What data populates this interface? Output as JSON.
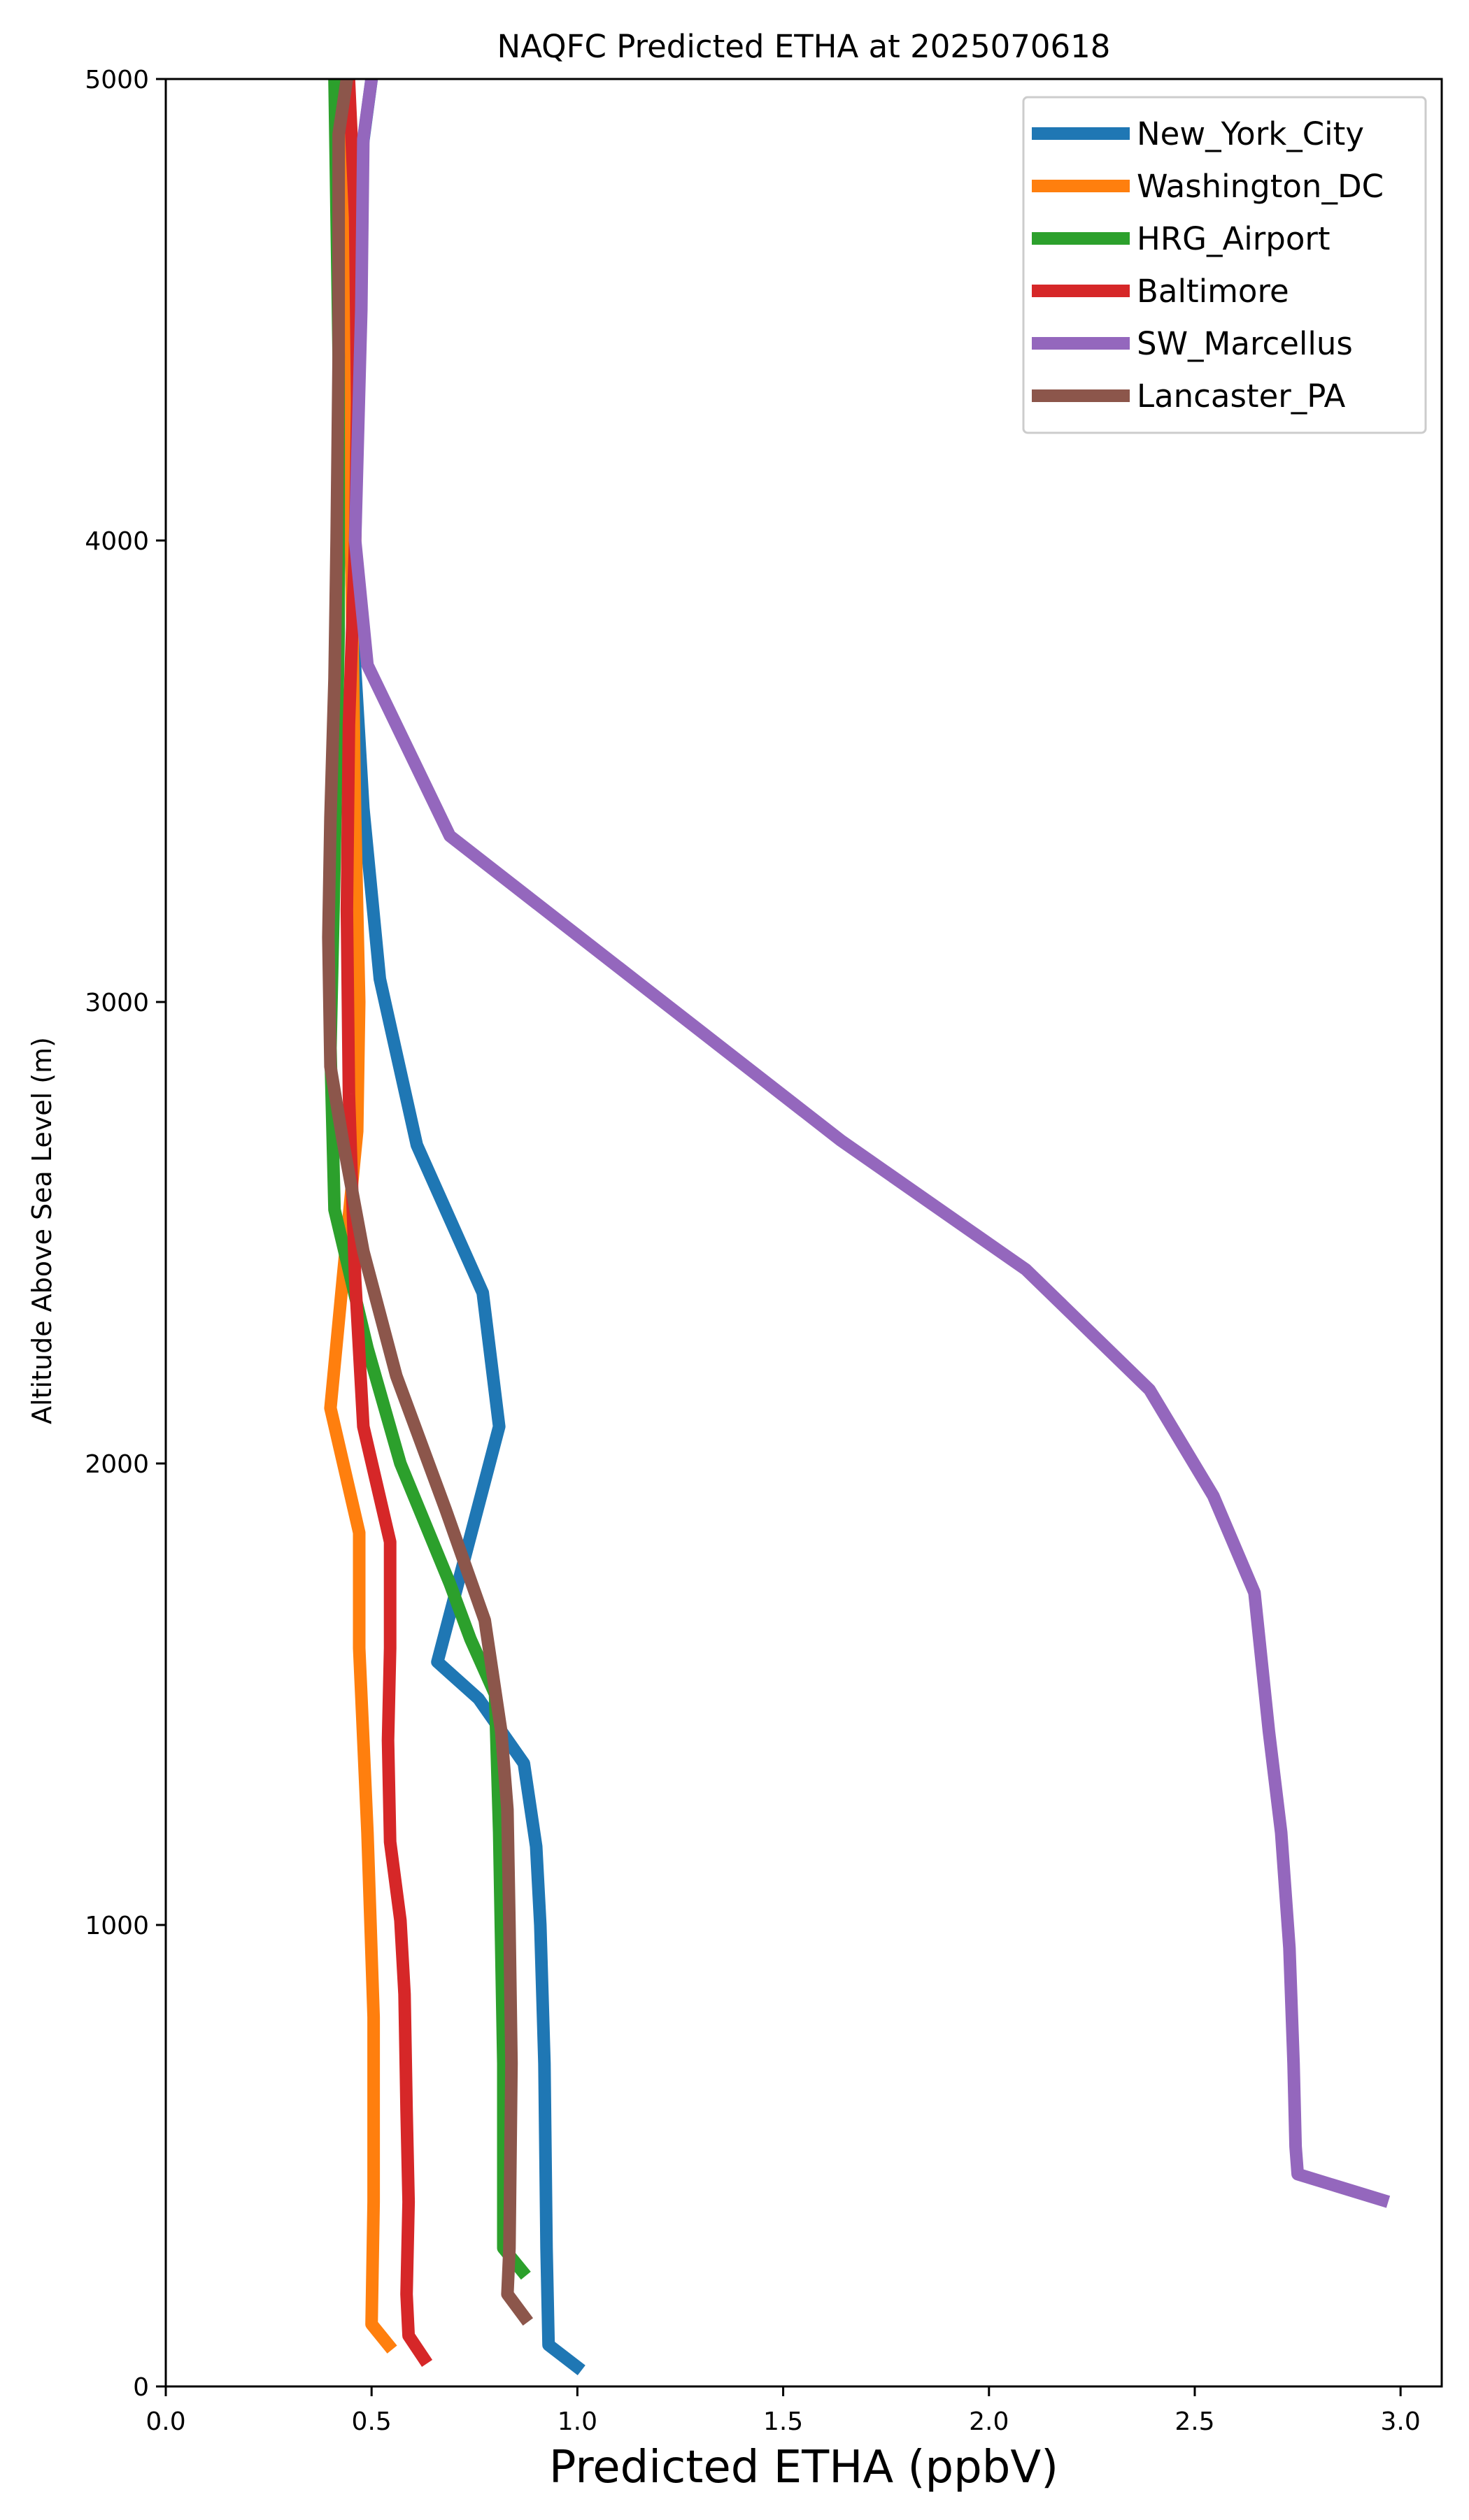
{
  "chart_data": {
    "type": "line",
    "title": "NAQFC Predicted ETHA at 2025070618",
    "xlabel": "Predicted ETHA (ppbV)",
    "ylabel": "Altitude Above Sea Level (m)",
    "xlim": [
      0.0,
      3.1
    ],
    "ylim": [
      0,
      5000
    ],
    "xticks": [
      0.0,
      0.5,
      1.0,
      1.5,
      2.0,
      2.5,
      3.0
    ],
    "xtick_labels": [
      "0.0",
      "0.5",
      "1.0",
      "1.5",
      "2.0",
      "2.5",
      "3.0"
    ],
    "yticks": [
      0,
      1000,
      2000,
      3000,
      4000,
      5000
    ],
    "ytick_labels": [
      "0",
      "1000",
      "2000",
      "3000",
      "4000",
      "5000"
    ],
    "grid": false,
    "legend_position": "top-right",
    "series": [
      {
        "name": "New_York_City",
        "color": "#1f77b4",
        "points": [
          [
            1.01,
            35
          ],
          [
            0.93,
            90
          ],
          [
            0.925,
            300
          ],
          [
            0.92,
            700
          ],
          [
            0.91,
            1000
          ],
          [
            0.9,
            1170
          ],
          [
            0.87,
            1350
          ],
          [
            0.76,
            1490
          ],
          [
            0.66,
            1570
          ],
          [
            0.81,
            2080
          ],
          [
            0.77,
            2370
          ],
          [
            0.61,
            2690
          ],
          [
            0.52,
            3050
          ],
          [
            0.48,
            3420
          ],
          [
            0.455,
            3800
          ],
          [
            0.44,
            4300
          ],
          [
            0.47,
            4800
          ],
          [
            0.5,
            5000
          ]
        ]
      },
      {
        "name": "Washington_DC",
        "color": "#ff7f0e",
        "points": [
          [
            0.55,
            80
          ],
          [
            0.5,
            135
          ],
          [
            0.505,
            400
          ],
          [
            0.505,
            800
          ],
          [
            0.49,
            1200
          ],
          [
            0.47,
            1600
          ],
          [
            0.47,
            1850
          ],
          [
            0.4,
            2120
          ],
          [
            0.43,
            2400
          ],
          [
            0.465,
            2720
          ],
          [
            0.47,
            3000
          ],
          [
            0.46,
            3400
          ],
          [
            0.45,
            4000
          ],
          [
            0.43,
            4800
          ],
          [
            0.42,
            5000
          ]
        ]
      },
      {
        "name": "HRG_Airport",
        "color": "#2ca02c",
        "points": [
          [
            0.875,
            240
          ],
          [
            0.82,
            300
          ],
          [
            0.82,
            700
          ],
          [
            0.81,
            1200
          ],
          [
            0.8,
            1500
          ],
          [
            0.74,
            1620
          ],
          [
            0.69,
            1740
          ],
          [
            0.57,
            2000
          ],
          [
            0.49,
            2250
          ],
          [
            0.41,
            2550
          ],
          [
            0.4,
            2900
          ],
          [
            0.41,
            3300
          ],
          [
            0.42,
            3800
          ],
          [
            0.42,
            4400
          ],
          [
            0.41,
            5000
          ]
        ]
      },
      {
        "name": "Baltimore",
        "color": "#d62728",
        "points": [
          [
            0.635,
            50
          ],
          [
            0.59,
            110
          ],
          [
            0.585,
            200
          ],
          [
            0.59,
            400
          ],
          [
            0.585,
            600
          ],
          [
            0.58,
            850
          ],
          [
            0.57,
            1010
          ],
          [
            0.545,
            1180
          ],
          [
            0.54,
            1400
          ],
          [
            0.545,
            1600
          ],
          [
            0.545,
            1830
          ],
          [
            0.48,
            2080
          ],
          [
            0.46,
            2400
          ],
          [
            0.445,
            2800
          ],
          [
            0.44,
            3200
          ],
          [
            0.445,
            3600
          ],
          [
            0.46,
            4000
          ],
          [
            0.465,
            4300
          ],
          [
            0.46,
            4700
          ],
          [
            0.445,
            5000
          ]
        ]
      },
      {
        "name": "SW_Marcellus",
        "color": "#9467bd",
        "points": [
          [
            2.97,
            400
          ],
          [
            2.75,
            460
          ],
          [
            2.745,
            520
          ],
          [
            2.74,
            700
          ],
          [
            2.73,
            950
          ],
          [
            2.71,
            1200
          ],
          [
            2.68,
            1420
          ],
          [
            2.645,
            1720
          ],
          [
            2.545,
            1930
          ],
          [
            2.39,
            2160
          ],
          [
            2.09,
            2420
          ],
          [
            1.64,
            2700
          ],
          [
            0.69,
            3360
          ],
          [
            0.49,
            3730
          ],
          [
            0.46,
            4000
          ],
          [
            0.475,
            4500
          ],
          [
            0.48,
            4870
          ],
          [
            0.5,
            5000
          ]
        ]
      },
      {
        "name": "Lancaster_PA",
        "color": "#8c564b",
        "points": [
          [
            0.88,
            140
          ],
          [
            0.83,
            200
          ],
          [
            0.835,
            300
          ],
          [
            0.84,
            700
          ],
          [
            0.835,
            1000
          ],
          [
            0.83,
            1250
          ],
          [
            0.815,
            1420
          ],
          [
            0.775,
            1660
          ],
          [
            0.68,
            1900
          ],
          [
            0.56,
            2190
          ],
          [
            0.48,
            2460
          ],
          [
            0.43,
            2700
          ],
          [
            0.4,
            2860
          ],
          [
            0.395,
            3140
          ],
          [
            0.4,
            3400
          ],
          [
            0.41,
            3700
          ],
          [
            0.415,
            4000
          ],
          [
            0.42,
            4400
          ],
          [
            0.42,
            4880
          ],
          [
            0.44,
            5000
          ]
        ]
      }
    ]
  }
}
